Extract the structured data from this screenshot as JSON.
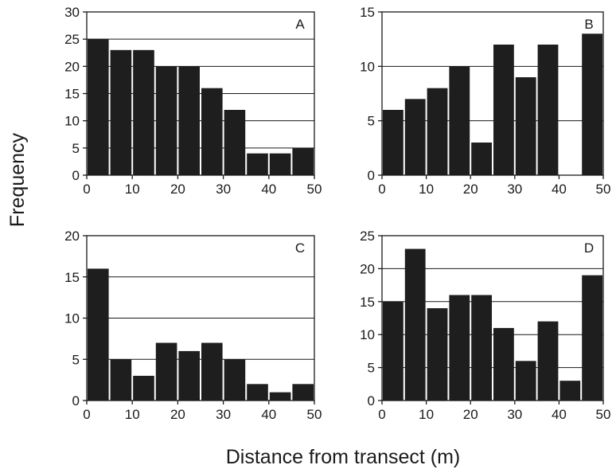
{
  "figure": {
    "ylabel": "Frequency",
    "xlabel": "Distance from transect (m)"
  },
  "chart_data": [
    {
      "type": "bar",
      "panel_label": "A",
      "bin_width": 5,
      "x": [
        2.5,
        7.5,
        12.5,
        17.5,
        22.5,
        27.5,
        32.5,
        37.5,
        42.5,
        47.5
      ],
      "values": [
        25,
        23,
        23,
        20,
        20,
        16,
        12,
        4,
        4,
        5
      ],
      "xlim": [
        0,
        50
      ],
      "ylim": [
        0,
        30
      ],
      "xticks": [
        0,
        10,
        20,
        30,
        40,
        50
      ],
      "yticks": [
        0,
        5,
        10,
        15,
        20,
        25,
        30
      ],
      "grid": "horizontal",
      "bar_color": "#1e1e1e"
    },
    {
      "type": "bar",
      "panel_label": "B",
      "bin_width": 5,
      "x": [
        2.5,
        7.5,
        12.5,
        17.5,
        22.5,
        27.5,
        32.5,
        37.5,
        42.5,
        47.5
      ],
      "values": [
        6,
        7,
        8,
        10,
        3,
        12,
        9,
        12,
        0,
        13
      ],
      "xlim": [
        0,
        50
      ],
      "ylim": [
        0,
        15
      ],
      "xticks": [
        0,
        10,
        20,
        30,
        40,
        50
      ],
      "yticks": [
        0,
        5,
        10,
        15
      ],
      "grid": "horizontal",
      "bar_color": "#1e1e1e"
    },
    {
      "type": "bar",
      "panel_label": "C",
      "bin_width": 5,
      "x": [
        2.5,
        7.5,
        12.5,
        17.5,
        22.5,
        27.5,
        32.5,
        37.5,
        42.5,
        47.5
      ],
      "values": [
        16,
        5,
        3,
        7,
        6,
        7,
        5,
        2,
        1,
        2
      ],
      "xlim": [
        0,
        50
      ],
      "ylim": [
        0,
        20
      ],
      "xticks": [
        0,
        10,
        20,
        30,
        40,
        50
      ],
      "yticks": [
        0,
        5,
        10,
        15,
        20
      ],
      "grid": "horizontal",
      "bar_color": "#1e1e1e"
    },
    {
      "type": "bar",
      "panel_label": "D",
      "bin_width": 5,
      "x": [
        2.5,
        7.5,
        12.5,
        17.5,
        22.5,
        27.5,
        32.5,
        37.5,
        42.5,
        47.5
      ],
      "values": [
        15,
        23,
        14,
        16,
        16,
        11,
        6,
        12,
        3,
        19
      ],
      "xlim": [
        0,
        50
      ],
      "ylim": [
        0,
        25
      ],
      "xticks": [
        0,
        10,
        20,
        30,
        40,
        50
      ],
      "yticks": [
        0,
        5,
        10,
        15,
        20,
        25
      ],
      "grid": "horizontal",
      "bar_color": "#1e1e1e"
    }
  ]
}
